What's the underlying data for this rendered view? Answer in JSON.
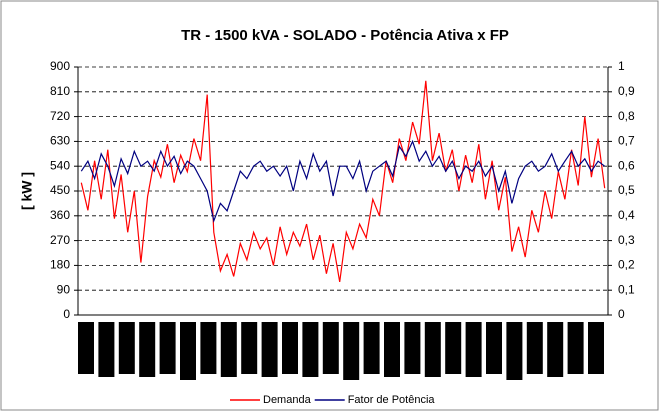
{
  "chart_data": {
    "type": "line",
    "title": "TR  - 1500 kVA - SOLADO  -  Potência Ativa x FP",
    "y_label": "[ kW ]",
    "categories": [
      null,
      null,
      null,
      null,
      null,
      null,
      null,
      null,
      null,
      null,
      null,
      null,
      null,
      null,
      null,
      null,
      null,
      null,
      null,
      null,
      null,
      null,
      null,
      null,
      null,
      null,
      null,
      null,
      null,
      null,
      null,
      null,
      null,
      null,
      null,
      null,
      null,
      null,
      null,
      null,
      null,
      null,
      null,
      null,
      null,
      null,
      null,
      null,
      null,
      null,
      null,
      null,
      null,
      null,
      null,
      null,
      null,
      null,
      null,
      null,
      null,
      null,
      null,
      null,
      null,
      null,
      null,
      null,
      null,
      null,
      null,
      null,
      null,
      null,
      null,
      null,
      null,
      null,
      null,
      null
    ],
    "series": [
      {
        "name": "Demanda",
        "color": "#ff0000",
        "values": [
          480,
          380,
          560,
          420,
          600,
          350,
          510,
          300,
          450,
          190,
          430,
          560,
          500,
          620,
          480,
          580,
          520,
          640,
          560,
          800,
          300,
          160,
          220,
          140,
          260,
          200,
          300,
          240,
          280,
          180,
          320,
          220,
          300,
          250,
          330,
          200,
          290,
          150,
          260,
          120,
          300,
          240,
          330,
          280,
          420,
          360,
          560,
          480,
          640,
          560,
          700,
          620,
          850,
          560,
          660,
          520,
          600,
          450,
          580,
          480,
          620,
          420,
          560,
          380,
          500,
          230,
          320,
          210,
          380,
          300,
          450,
          350,
          520,
          420,
          600,
          470,
          720,
          500,
          640,
          460
        ]
      },
      {
        "name": "Fator de Potência",
        "color": "#000080",
        "axis": "y2",
        "values": [
          0.58,
          0.62,
          0.55,
          0.65,
          0.6,
          0.52,
          0.63,
          0.57,
          0.66,
          0.6,
          0.62,
          0.58,
          0.66,
          0.6,
          0.64,
          0.57,
          0.62,
          0.6,
          0.55,
          0.5,
          0.38,
          0.45,
          0.42,
          0.5,
          0.58,
          0.55,
          0.6,
          0.62,
          0.58,
          0.6,
          0.56,
          0.6,
          0.5,
          0.62,
          0.55,
          0.65,
          0.58,
          0.62,
          0.48,
          0.6,
          0.6,
          0.55,
          0.62,
          0.5,
          0.58,
          0.6,
          0.62,
          0.56,
          0.68,
          0.64,
          0.7,
          0.62,
          0.66,
          0.6,
          0.64,
          0.58,
          0.62,
          0.55,
          0.6,
          0.58,
          0.62,
          0.56,
          0.6,
          0.5,
          0.58,
          0.45,
          0.55,
          0.6,
          0.62,
          0.58,
          0.6,
          0.65,
          0.58,
          0.62,
          0.66,
          0.6,
          0.63,
          0.58,
          0.62,
          0.6
        ]
      }
    ],
    "ylim": [
      0,
      900
    ],
    "yticks": [
      0,
      90,
      180,
      270,
      360,
      450,
      540,
      630,
      720,
      810,
      900
    ],
    "y2lim": [
      0,
      1
    ],
    "y2ticks": [
      0,
      {
        "value": 0.1,
        "label": "0,1"
      },
      {
        "value": 0.2,
        "label": "0,2"
      },
      {
        "value": 0.3,
        "label": "0,3"
      },
      {
        "value": 0.4,
        "label": "0,4"
      },
      {
        "value": 0.5,
        "label": "0,5"
      },
      {
        "value": 0.6,
        "label": "0,6"
      },
      {
        "value": 0.7,
        "label": "0,7"
      },
      {
        "value": 0.8,
        "label": "0,8"
      },
      {
        "value": 0.9,
        "label": "0,9"
      },
      1
    ],
    "grid": true,
    "legend": "bottom"
  }
}
